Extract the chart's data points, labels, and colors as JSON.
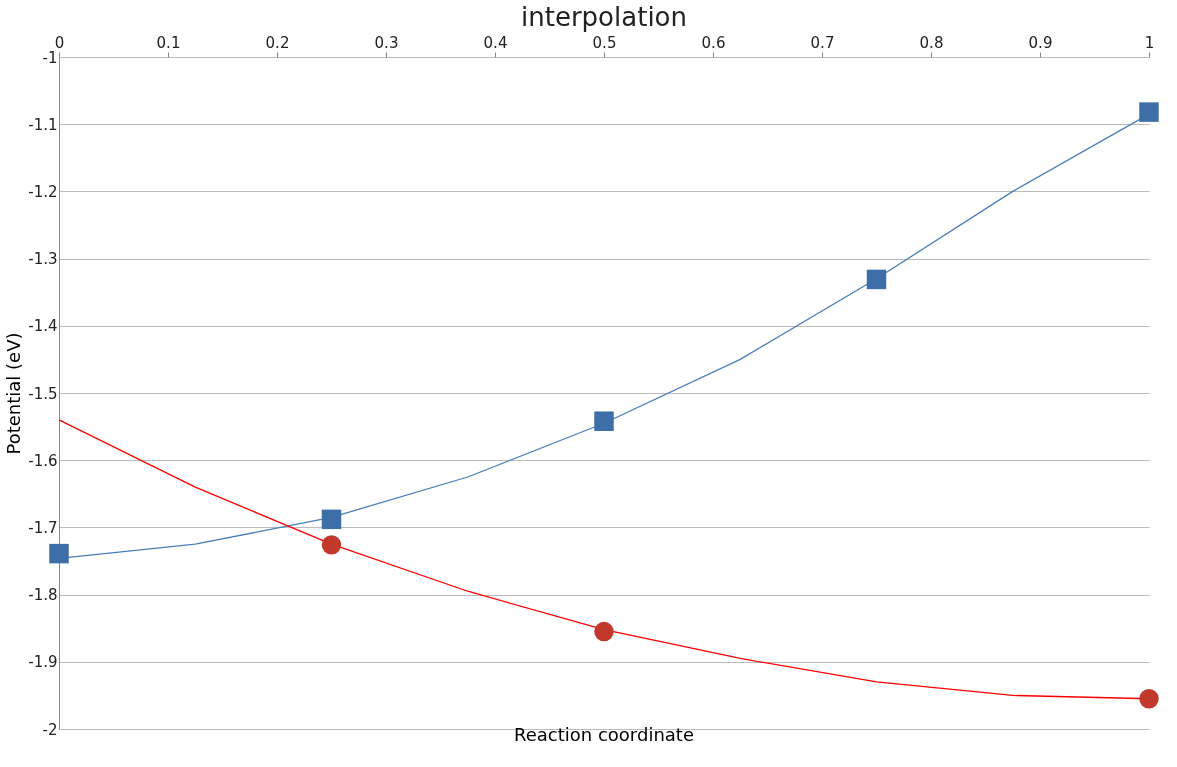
{
  "chart_data": {
    "type": "scatter",
    "title": "interpolation",
    "xlabel": "Reaction coordinate",
    "ylabel": "Potential (eV)",
    "xlim": [
      0,
      1
    ],
    "xticks": [
      0,
      0.1,
      0.2,
      0.3,
      0.4,
      0.5,
      0.6,
      0.7,
      0.8,
      0.9,
      1
    ],
    "ylim": [
      -2,
      -1
    ],
    "yticks": [
      -2,
      -1.9,
      -1.8,
      -1.7,
      -1.6,
      -1.5,
      -1.4,
      -1.3,
      -1.2,
      -1.1,
      -1
    ],
    "grid": "y",
    "series": [
      {
        "type": "line",
        "color": "#4a7ebb",
        "marker": "none",
        "x": [
          0,
          0.125,
          0.25,
          0.375,
          0.5,
          0.625,
          0.75,
          0.875,
          1
        ],
        "values": [
          -1.746,
          -1.725,
          -1.685,
          -1.625,
          -1.545,
          -1.45,
          -1.33,
          -1.2,
          -1.085
        ]
      },
      {
        "type": "line",
        "color": "#ff0000",
        "marker": "none",
        "x": [
          0,
          0.125,
          0.25,
          0.375,
          0.5,
          0.625,
          0.75,
          0.875,
          1
        ],
        "values": [
          -1.54,
          -1.64,
          -1.725,
          -1.795,
          -1.852,
          -1.895,
          -1.93,
          -1.95,
          -1.955
        ]
      },
      {
        "color": "#3e6ea8",
        "marker": "square",
        "x": [
          0,
          0.25,
          0.5,
          0.75,
          1
        ],
        "values": [
          -1.739,
          -1.688,
          -1.542,
          -1.331,
          -1.082
        ]
      },
      {
        "color": "#c0392b",
        "marker": "circle",
        "x": [
          0.25,
          0.5,
          1
        ],
        "values": [
          -1.726,
          -1.855,
          -1.955
        ]
      }
    ]
  }
}
